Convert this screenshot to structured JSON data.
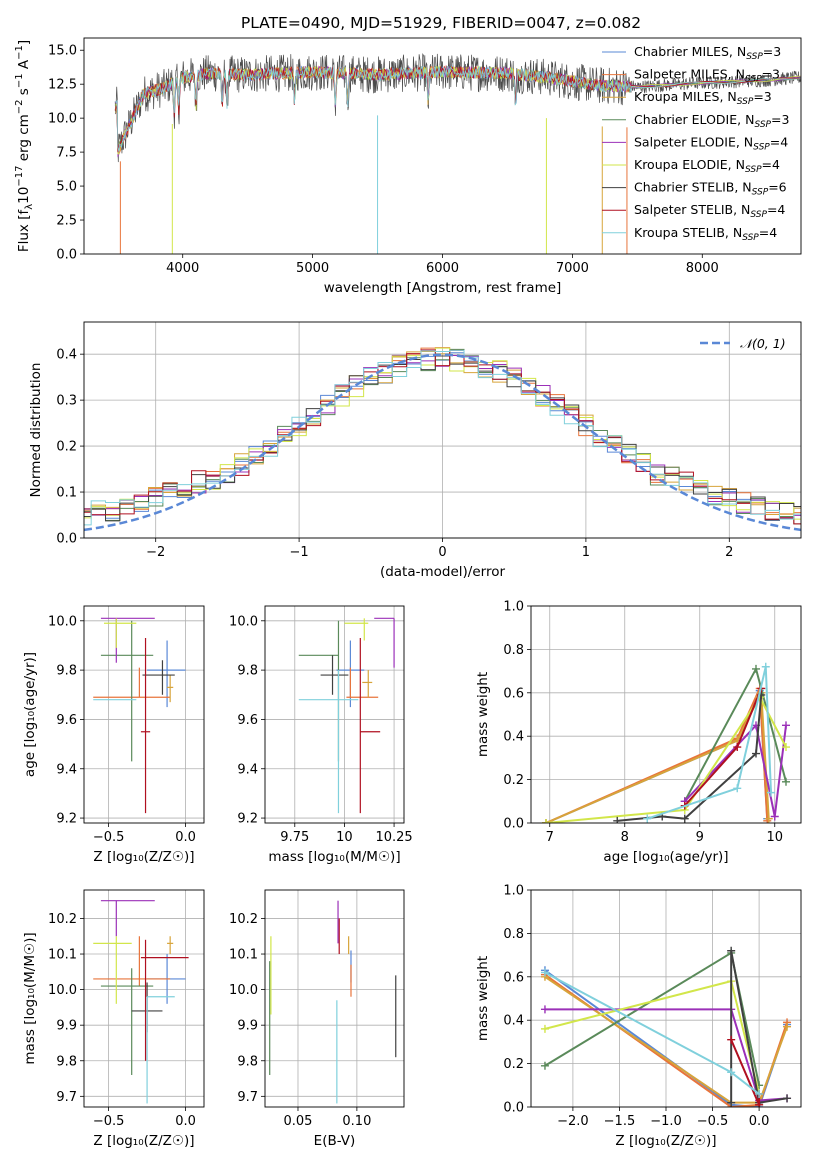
{
  "figure": {
    "title": "PLATE=0490, MJD=51929, FIBERID=0047, z=0.082"
  },
  "legend_labels": [
    {
      "text": "Chabrier MILES, N",
      "sub": "SSP",
      "tail": "=3"
    },
    {
      "text": "Salpeter MILES, N",
      "sub": "SSP",
      "tail": "=3"
    },
    {
      "text": "Kroupa MILES, N",
      "sub": "SSP",
      "tail": "=3"
    },
    {
      "text": "Chabrier ELODIE, N",
      "sub": "SSP",
      "tail": "=3"
    },
    {
      "text": "Salpeter ELODIE, N",
      "sub": "SSP",
      "tail": "=4"
    },
    {
      "text": "Kroupa ELODIE, N",
      "sub": "SSP",
      "tail": "=4"
    },
    {
      "text": "Chabrier STELIB, N",
      "sub": "SSP",
      "tail": "=6"
    },
    {
      "text": "Salpeter STELIB, N",
      "sub": "SSP",
      "tail": "=4"
    },
    {
      "text": "Kroupa STELIB, N",
      "sub": "SSP",
      "tail": "=4"
    }
  ],
  "colors": [
    "#5a88d6",
    "#e8743b",
    "#d7a43a",
    "#5a8a5a",
    "#9b30b8",
    "#d2e64a",
    "#404040",
    "#b01020",
    "#80d0dc"
  ],
  "chart_data": [
    {
      "type": "line",
      "id": "spectrum",
      "title": "PLATE=0490, MJD=51929, FIBERID=0047, z=0.082",
      "xlabel": "wavelength [Angstrom, rest frame]",
      "ylabel": {
        "pre": "Flux [f",
        "sub": "λ",
        "mid": "10",
        "sup1": "−17",
        "post": " erg cm",
        "sup2": "−2",
        "post2": " s",
        "sup3": "−1",
        "post3": " A",
        "sup4": "−1",
        "end": "]"
      },
      "xlim": [
        3240,
        8760
      ],
      "ylim": [
        0,
        15.9
      ],
      "xticks": [
        4000,
        5000,
        6000,
        7000,
        8000
      ],
      "yticks": [
        0.0,
        2.5,
        5.0,
        7.5,
        10.0,
        12.5,
        15.0
      ],
      "grid": false,
      "legend": "right",
      "continuum": [
        [
          3500,
          9.6
        ],
        [
          3700,
          11.8
        ],
        [
          3850,
          12.2
        ],
        [
          4000,
          13.0
        ],
        [
          4200,
          13.3
        ],
        [
          4500,
          13.2
        ],
        [
          5000,
          13.4
        ],
        [
          5500,
          13.2
        ],
        [
          6000,
          13.4
        ],
        [
          6500,
          13.3
        ],
        [
          6800,
          13.0
        ],
        [
          7200,
          12.4
        ],
        [
          7500,
          12.3
        ],
        [
          8000,
          12.6
        ],
        [
          8500,
          12.8
        ],
        [
          8760,
          13.0
        ]
      ],
      "observed_range": [
        3480,
        7450
      ],
      "model_range": [
        3480,
        8760
      ],
      "absorption_lines": [
        3934,
        3969,
        4102,
        4304,
        4341,
        4861,
        5175,
        5270,
        5890,
        6563
      ],
      "dropouts": [
        {
          "x": 3520,
          "series": 1
        },
        {
          "x": 3920,
          "series": 5
        },
        {
          "x": 5500,
          "series": 8
        },
        {
          "x": 6800,
          "series": 5
        },
        {
          "x": 7230,
          "series": 2
        },
        {
          "x": 7420,
          "series": 1
        }
      ]
    },
    {
      "type": "line",
      "id": "residuals",
      "xlabel": "(data-model)/error",
      "ylabel": "Normed distribution",
      "xlim": [
        -2.5,
        2.5
      ],
      "ylim": [
        0,
        0.47
      ],
      "xticks": [
        -2,
        -1,
        0,
        1,
        2
      ],
      "xticklabels": [
        "−2",
        "−1",
        "0",
        "1",
        "2"
      ],
      "yticks": [
        0.0,
        0.1,
        0.2,
        0.3,
        0.4
      ],
      "grid": true,
      "legend": "top-right",
      "reference_label": "𝒩(0, 1)",
      "bin_width": 0.1,
      "histogram_peak": 0.37
    },
    {
      "type": "scatter",
      "id": "age_vs_z",
      "xlabel": "Z [log₁₀(Z/Z☉)]",
      "ylabel": "age  [log₁₀(age/yr)]",
      "xlim": [
        -0.66,
        0.12
      ],
      "ylim": [
        9.18,
        10.06
      ],
      "xticks": [
        -0.5,
        0.0
      ],
      "xticklabels": [
        "−0.5",
        "0.0"
      ],
      "yticks": [
        9.2,
        9.4,
        9.6,
        9.8,
        10.0
      ],
      "grid": true,
      "points": [
        {
          "series": 0,
          "x": -0.12,
          "y": 9.8,
          "xerr": [
            0.13,
            0.12
          ],
          "yerr": [
            0.15,
            0.12
          ]
        },
        {
          "series": 1,
          "x": -0.3,
          "y": 9.69,
          "xerr": [
            0.3,
            0.2
          ],
          "yerr": [
            0.0,
            0.12
          ]
        },
        {
          "series": 2,
          "x": -0.1,
          "y": 9.73,
          "xerr": [
            0.02,
            0.02
          ],
          "yerr": [
            0.06,
            0.05
          ]
        },
        {
          "series": 3,
          "x": -0.35,
          "y": 9.86,
          "xerr": [
            0.2,
            0.14
          ],
          "yerr": [
            0.43,
            0.14
          ]
        },
        {
          "series": 4,
          "x": -0.45,
          "y": 10.01,
          "xerr": [
            0.1,
            0.25
          ],
          "yerr": [
            0.18,
            0.0
          ]
        },
        {
          "series": 5,
          "x": -0.45,
          "y": 9.99,
          "xerr": [
            0.08,
            0.13
          ],
          "yerr": [
            0.1,
            0.02
          ]
        },
        {
          "series": 6,
          "x": -0.15,
          "y": 9.78,
          "xerr": [
            0.13,
            0.08
          ],
          "yerr": [
            0.08,
            0.06
          ]
        },
        {
          "series": 7,
          "x": -0.26,
          "y": 9.55,
          "xerr": [
            0.03,
            0.03
          ],
          "yerr": [
            0.33,
            0.38
          ]
        },
        {
          "series": 8,
          "x": -0.45,
          "y": 9.68,
          "xerr": [
            0.15,
            0.13
          ],
          "yerr": [
            0.0,
            0.0
          ]
        }
      ]
    },
    {
      "type": "scatter",
      "id": "age_vs_mass",
      "xlabel": "mass [log₁₀(M/M☉)]",
      "ylabel": "",
      "xlim": [
        9.6,
        10.3
      ],
      "ylim": [
        9.18,
        10.06
      ],
      "xticks": [
        9.75,
        10.0,
        10.25
      ],
      "yticks": [
        9.2,
        9.4,
        9.6,
        9.8,
        10.0
      ],
      "grid": true,
      "points": [
        {
          "series": 0,
          "x": 10.03,
          "y": 9.8,
          "xerr": [
            0.07,
            0.07
          ],
          "yerr": [
            0.15,
            0.12
          ]
        },
        {
          "series": 1,
          "x": 10.03,
          "y": 9.69,
          "xerr": [
            0.02,
            0.14
          ],
          "yerr": [
            0.0,
            0.12
          ]
        },
        {
          "series": 2,
          "x": 10.12,
          "y": 9.75,
          "xerr": [
            0.03,
            0.02
          ],
          "yerr": [
            0.06,
            0.05
          ]
        },
        {
          "series": 3,
          "x": 9.97,
          "y": 9.86,
          "xerr": [
            0.2,
            0.0
          ],
          "yerr": [
            0.43,
            0.14
          ]
        },
        {
          "series": 4,
          "x": 10.25,
          "y": 10.01,
          "xerr": [
            0.1,
            0.0
          ],
          "yerr": [
            0.2,
            0.0
          ]
        },
        {
          "series": 5,
          "x": 10.1,
          "y": 9.99,
          "xerr": [
            0.1,
            0.02
          ],
          "yerr": [
            0.07,
            0.02
          ]
        },
        {
          "series": 6,
          "x": 9.94,
          "y": 9.78,
          "xerr": [
            0.06,
            0.08
          ],
          "yerr": [
            0.08,
            0.08
          ]
        },
        {
          "series": 7,
          "x": 10.08,
          "y": 9.55,
          "xerr": [
            0.0,
            0.1
          ],
          "yerr": [
            0.33,
            0.38
          ]
        },
        {
          "series": 8,
          "x": 9.97,
          "y": 9.68,
          "xerr": [
            0.2,
            0.1
          ],
          "yerr": [
            0.46,
            0.12
          ]
        }
      ]
    },
    {
      "type": "line",
      "id": "weight_vs_age",
      "xlabel": "age  [log₁₀(age/yr)]",
      "ylabel": "mass weight",
      "xlim": [
        6.75,
        10.35
      ],
      "ylim": [
        0,
        1.0
      ],
      "xticks": [
        7,
        8,
        9,
        10
      ],
      "yticks": [
        0.0,
        0.2,
        0.4,
        0.6,
        0.8,
        1.0
      ],
      "grid": true,
      "series": [
        {
          "series": 0,
          "x": [
            6.95,
            9.5,
            9.8,
            9.9
          ],
          "y": [
            0.0,
            0.38,
            0.61,
            0.02
          ]
        },
        {
          "series": 1,
          "x": [
            6.95,
            9.5,
            9.8,
            9.9
          ],
          "y": [
            0.0,
            0.39,
            0.62,
            0.01
          ]
        },
        {
          "series": 2,
          "x": [
            6.95,
            9.5,
            9.82,
            9.92
          ],
          "y": [
            0.0,
            0.38,
            0.6,
            0.02
          ]
        },
        {
          "series": 3,
          "x": [
            8.8,
            9.75,
            10.15
          ],
          "y": [
            0.1,
            0.71,
            0.19
          ]
        },
        {
          "series": 4,
          "x": [
            8.8,
            9.75,
            10.0,
            10.15
          ],
          "y": [
            0.1,
            0.45,
            0.03,
            0.45
          ]
        },
        {
          "series": 5,
          "x": [
            6.95,
            8.8,
            9.8,
            10.15
          ],
          "y": [
            0.0,
            0.06,
            0.58,
            0.35
          ]
        },
        {
          "series": 6,
          "x": [
            7.9,
            8.5,
            8.8,
            9.75,
            9.82
          ],
          "y": [
            0.01,
            0.03,
            0.02,
            0.32,
            0.59
          ]
        },
        {
          "series": 7,
          "x": [
            8.8,
            9.5,
            9.82
          ],
          "y": [
            0.08,
            0.35,
            0.62
          ]
        },
        {
          "series": 8,
          "x": [
            8.3,
            9.5,
            9.88,
            9.95
          ],
          "y": [
            0.02,
            0.16,
            0.72,
            0.14
          ]
        }
      ]
    },
    {
      "type": "scatter",
      "id": "mass_vs_z",
      "xlabel": "Z [log₁₀(Z/Z☉)]",
      "ylabel": "mass [log₁₀(M/M☉)]",
      "xlim": [
        -0.66,
        0.12
      ],
      "ylim": [
        9.67,
        10.28
      ],
      "xticks": [
        -0.5,
        0.0
      ],
      "xticklabels": [
        "−0.5",
        "0.0"
      ],
      "yticks": [
        9.7,
        9.8,
        9.9,
        10.0,
        10.1,
        10.2
      ],
      "grid": true,
      "points": [
        {
          "series": 0,
          "x": -0.12,
          "y": 10.03,
          "xerr": [
            0.13,
            0.12
          ],
          "yerr": [
            0.07,
            0.07
          ]
        },
        {
          "series": 1,
          "x": -0.3,
          "y": 10.03,
          "xerr": [
            0.3,
            0.2
          ],
          "yerr": [
            0.02,
            0.12
          ]
        },
        {
          "series": 2,
          "x": -0.1,
          "y": 10.13,
          "xerr": [
            0.02,
            0.02
          ],
          "yerr": [
            0.03,
            0.02
          ]
        },
        {
          "series": 3,
          "x": -0.35,
          "y": 10.01,
          "xerr": [
            0.2,
            0.14
          ],
          "yerr": [
            0.25,
            0.05
          ]
        },
        {
          "series": 4,
          "x": -0.45,
          "y": 10.25,
          "xerr": [
            0.1,
            0.25
          ],
          "yerr": [
            0.1,
            0.0
          ]
        },
        {
          "series": 5,
          "x": -0.45,
          "y": 10.13,
          "xerr": [
            0.15,
            0.1
          ],
          "yerr": [
            0.17,
            0.02
          ]
        },
        {
          "series": 6,
          "x": -0.25,
          "y": 9.94,
          "xerr": [
            0.1,
            0.1
          ],
          "yerr": [
            0.06,
            0.08
          ]
        },
        {
          "series": 7,
          "x": -0.26,
          "y": 10.09,
          "xerr": [
            0.03,
            0.28
          ],
          "yerr": [
            0.29,
            0.05
          ]
        },
        {
          "series": 8,
          "x": -0.25,
          "y": 9.98,
          "xerr": [
            0.0,
            0.18
          ],
          "yerr": [
            0.3,
            0.0
          ]
        }
      ]
    },
    {
      "type": "scatter",
      "id": "mass_vs_ebv",
      "xlabel": "E(B-V)",
      "ylabel": "",
      "xlim": [
        0.022,
        0.14
      ],
      "ylim": [
        9.67,
        10.28
      ],
      "xticks": [
        0.05,
        0.1
      ],
      "xticklabels": [
        "0.05",
        "0.10"
      ],
      "yticks": [
        9.7,
        9.8,
        9.9,
        10.0,
        10.1,
        10.2
      ],
      "grid": true,
      "points": [
        {
          "series": 0,
          "x": 0.095,
          "y": 10.07,
          "xerr": [
            0.0,
            0.0
          ],
          "yerr": [
            0.05,
            0.04
          ]
        },
        {
          "series": 1,
          "x": 0.095,
          "y": 10.03,
          "xerr": [
            0.0,
            0.0
          ],
          "yerr": [
            0.05,
            0.04
          ]
        },
        {
          "series": 2,
          "x": 0.093,
          "y": 10.13,
          "xerr": [
            0.0,
            0.0
          ],
          "yerr": [
            0.03,
            0.02
          ]
        },
        {
          "series": 3,
          "x": 0.026,
          "y": 9.93,
          "xerr": [
            0.0,
            0.0
          ],
          "yerr": [
            0.17,
            0.15
          ]
        },
        {
          "series": 4,
          "x": 0.084,
          "y": 10.23,
          "xerr": [
            0.0,
            0.0
          ],
          "yerr": [
            0.1,
            0.02
          ]
        },
        {
          "series": 5,
          "x": 0.027,
          "y": 10.1,
          "xerr": [
            0.0,
            0.0
          ],
          "yerr": [
            0.17,
            0.05
          ]
        },
        {
          "series": 6,
          "x": 0.133,
          "y": 9.93,
          "xerr": [
            0.0,
            0.0
          ],
          "yerr": [
            0.12,
            0.11
          ]
        },
        {
          "series": 7,
          "x": 0.085,
          "y": 10.15,
          "xerr": [
            0.0,
            0.0
          ],
          "yerr": [
            0.05,
            0.05
          ]
        },
        {
          "series": 8,
          "x": 0.083,
          "y": 9.9,
          "xerr": [
            0.0,
            0.0
          ],
          "yerr": [
            0.22,
            0.07
          ]
        }
      ]
    },
    {
      "type": "line",
      "id": "weight_vs_z",
      "xlabel": "Z [log₁₀(Z/Z☉)]",
      "ylabel": "mass weight",
      "xlim": [
        -2.45,
        0.45
      ],
      "ylim": [
        0,
        1.0
      ],
      "xticks": [
        -2.0,
        -1.5,
        -1.0,
        -0.5,
        0.0
      ],
      "xticklabels": [
        "−2.0",
        "−1.5",
        "−1.0",
        "−0.5",
        "0.0"
      ],
      "yticks": [
        0.0,
        0.2,
        0.4,
        0.6,
        0.8,
        1.0
      ],
      "grid": true,
      "series": [
        {
          "series": 0,
          "x": [
            -2.3,
            -0.3,
            0.0,
            0.3
          ],
          "y": [
            0.63,
            0.01,
            0.0,
            0.38
          ]
        },
        {
          "series": 1,
          "x": [
            -2.3,
            -0.3,
            0.0,
            0.3
          ],
          "y": [
            0.61,
            0.0,
            0.01,
            0.39
          ]
        },
        {
          "series": 2,
          "x": [
            -2.3,
            -0.3,
            0.0,
            0.3
          ],
          "y": [
            0.6,
            0.02,
            0.02,
            0.37
          ]
        },
        {
          "series": 3,
          "x": [
            -2.3,
            -0.3,
            0.0
          ],
          "y": [
            0.19,
            0.71,
            0.1
          ]
        },
        {
          "series": 4,
          "x": [
            -2.3,
            -0.3,
            0.0,
            0.3
          ],
          "y": [
            0.45,
            0.45,
            0.03,
            0.04
          ]
        },
        {
          "series": 5,
          "x": [
            -2.3,
            -0.3,
            0.0
          ],
          "y": [
            0.36,
            0.58,
            0.06
          ]
        },
        {
          "series": 6,
          "x": [
            -0.3,
            -0.3,
            0.0,
            0.3
          ],
          "y": [
            0.02,
            0.72,
            0.02,
            0.04
          ]
        },
        {
          "series": 7,
          "x": [
            -0.3,
            0.0,
            0.0
          ],
          "y": [
            0.31,
            0.01,
            0.06
          ]
        },
        {
          "series": 8,
          "x": [
            -2.3,
            -0.3,
            0.0
          ],
          "y": [
            0.62,
            0.16,
            0.06
          ]
        }
      ]
    }
  ]
}
